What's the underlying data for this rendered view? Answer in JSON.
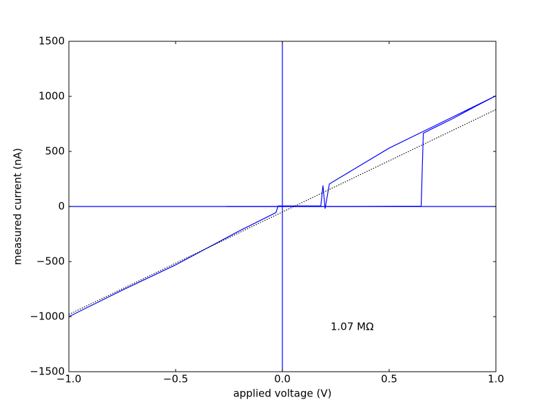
{
  "chart_data": {
    "type": "line",
    "xlabel": "applied voltage (V)",
    "ylabel": "measured current (nA)",
    "annotation": "1.07 MΩ",
    "xlim": [
      -1,
      1
    ],
    "ylim": [
      -1500,
      1500
    ],
    "xticks": [
      {
        "value": -1,
        "label": "−1.0"
      },
      {
        "value": -0.5,
        "label": "−0.5"
      },
      {
        "value": 0,
        "label": "0.0"
      },
      {
        "value": 0.5,
        "label": "0.5"
      },
      {
        "value": 1,
        "label": "1.0"
      }
    ],
    "yticks": [
      {
        "value": -1500,
        "label": "−1500"
      },
      {
        "value": -1000,
        "label": "−1000"
      },
      {
        "value": -500,
        "label": "−500"
      },
      0,
      500,
      1000,
      1500
    ],
    "reference_lines": {
      "color": "#0000ff",
      "x": [
        0
      ],
      "y": [
        0
      ]
    },
    "series": [
      {
        "color": "#0000ff",
        "dash": "solid",
        "x": [
          -0.26,
          0.0,
          0.3,
          0.65,
          0.66,
          0.7,
          0.8,
          0.9,
          1.0,
          0.5,
          0.22,
          0.2,
          0.19,
          0.18,
          0.0,
          -0.02,
          -0.03,
          -0.2,
          -0.5,
          -0.75,
          -1.0
        ],
        "values": [
          0,
          0,
          0,
          3,
          665,
          705,
          800,
          905,
          1005,
          530,
          205,
          -20,
          190,
          5,
          5,
          5,
          -55,
          -220,
          -530,
          -760,
          -1000
        ]
      },
      {
        "color": "#000000",
        "dash": "dotted",
        "x": [
          -1.0,
          1.0
        ],
        "values": [
          -980,
          880
        ]
      }
    ]
  }
}
